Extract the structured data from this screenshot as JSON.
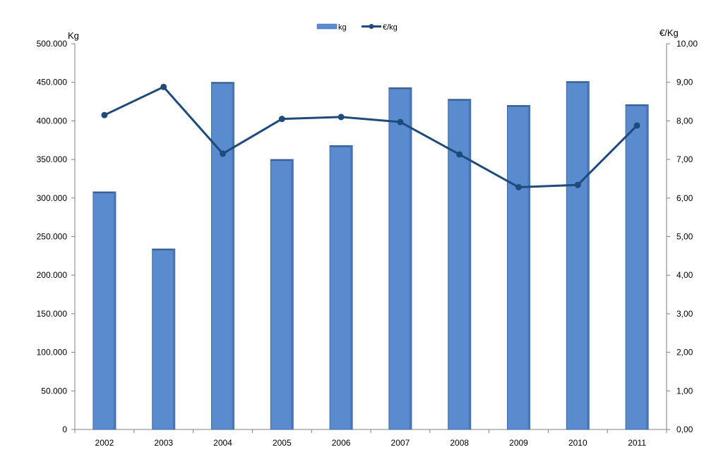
{
  "chart_data": {
    "type": "bar",
    "categories": [
      "2002",
      "2003",
      "2004",
      "2005",
      "2006",
      "2007",
      "2008",
      "2009",
      "2010",
      "2011"
    ],
    "series": [
      {
        "name": "kg",
        "type": "bar",
        "axis": "left",
        "values": [
          308000,
          234000,
          450000,
          350000,
          368000,
          443000,
          428000,
          420000,
          451000,
          421000
        ]
      },
      {
        "name": "€/kg",
        "type": "line",
        "axis": "right",
        "values": [
          8.15,
          8.88,
          7.15,
          8.05,
          8.1,
          7.97,
          7.13,
          6.28,
          6.34,
          7.88
        ]
      }
    ],
    "ylabel_left": "Kg",
    "ylabel_right": "€/Kg",
    "ylim_left": [
      0,
      500000
    ],
    "ylim_right": [
      0,
      10
    ],
    "yticks_left": [
      "0",
      "50.000",
      "100.000",
      "150.000",
      "200.000",
      "250.000",
      "300.000",
      "350.000",
      "400.000",
      "450.000",
      "500.000"
    ],
    "yticks_right": [
      "0,00",
      "1,00",
      "2,00",
      "3,00",
      "4,00",
      "5,00",
      "6,00",
      "7,00",
      "8,00",
      "9,00",
      "10,00"
    ],
    "legend": [
      "kg",
      "€/kg"
    ],
    "legend_position": "top-center",
    "grid": false,
    "colors": {
      "bar": "#5b8bcf",
      "bar_edge": "#3d6aa8",
      "line": "#1f4a7c"
    }
  }
}
